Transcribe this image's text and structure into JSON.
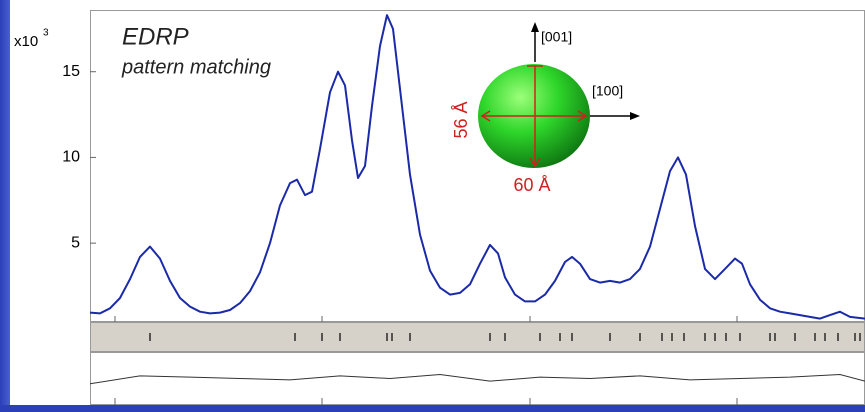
{
  "chart_data": {
    "type": "line",
    "title": "EDRP",
    "subtitle": "pattern matching",
    "y_multiplier": "x10",
    "y_multiplier_exponent": "3",
    "annotations": {
      "axis_001": "[001]",
      "axis_100": "[100]",
      "height": "56 Å",
      "width": "60 Å"
    },
    "xlim": [
      0,
      77.5
    ],
    "xticks": [
      2.5,
      23.2,
      44,
      64.7
    ],
    "ylim": [
      0.4,
      18.6
    ],
    "yticks": [
      5,
      10,
      15
    ],
    "x": [
      0,
      1,
      2,
      3,
      4,
      5,
      6,
      7,
      8,
      9,
      10,
      11,
      12,
      13,
      14,
      15,
      16,
      17,
      18,
      19,
      20,
      20.7,
      21.5,
      22.2,
      23,
      24,
      24.8,
      25.5,
      26.2,
      26.8,
      27.5,
      28.2,
      29,
      29.7,
      30.3,
      31,
      32,
      33,
      34,
      35,
      36,
      37,
      38,
      39,
      40,
      40.8,
      41.5,
      42.5,
      43.5,
      44.5,
      45.5,
      46.5,
      47.5,
      48.2,
      49,
      50,
      51,
      52,
      53,
      54,
      55,
      56,
      57,
      58,
      58.8,
      59.6,
      60.5,
      61.5,
      62.5,
      63.5,
      64.5,
      65.2,
      66,
      67,
      68,
      69,
      70,
      71,
      72,
      73,
      74,
      75,
      76,
      77.5
    ],
    "series": [
      {
        "color": "#1a2aa8",
        "values": [
          0.95,
          0.9,
          1.2,
          1.8,
          2.9,
          4.2,
          4.8,
          4.1,
          2.8,
          1.8,
          1.3,
          1.0,
          0.9,
          0.95,
          1.1,
          1.5,
          2.2,
          3.3,
          5.0,
          7.2,
          8.5,
          8.7,
          7.8,
          8.0,
          10.5,
          13.8,
          15.0,
          14.2,
          11.0,
          8.8,
          9.5,
          13.0,
          16.5,
          18.3,
          17.5,
          14.0,
          9.0,
          5.5,
          3.4,
          2.4,
          2.0,
          2.1,
          2.6,
          3.8,
          4.9,
          4.4,
          3.0,
          2.0,
          1.6,
          1.6,
          2.0,
          2.8,
          3.9,
          4.2,
          3.8,
          2.9,
          2.7,
          2.8,
          2.7,
          2.9,
          3.5,
          4.8,
          7.0,
          9.2,
          10.0,
          9.0,
          6.0,
          3.5,
          2.9,
          3.5,
          4.1,
          3.8,
          2.6,
          1.7,
          1.2,
          1.0,
          0.9,
          0.8,
          0.7,
          0.6,
          0.8,
          1.0,
          0.7,
          0.6
        ]
      }
    ],
    "reflections": [
      6,
      20.5,
      23.2,
      25,
      29.7,
      30.2,
      32,
      40,
      41.5,
      45,
      47,
      48.2,
      52,
      55,
      57.2,
      58.2,
      59.4,
      61.5,
      62.5,
      63.6,
      65,
      68,
      68.5,
      70.5,
      72.5,
      73.5,
      74.8,
      76.5,
      77
    ],
    "difference": {
      "ylim": [
        -1,
        1
      ],
      "x": [
        0,
        5,
        10,
        15,
        20,
        25,
        30,
        35,
        40,
        45,
        50,
        55,
        60,
        65,
        70,
        75,
        77.5
      ],
      "values": [
        -0.2,
        0.1,
        0.05,
        0,
        -0.05,
        0.1,
        0,
        0.15,
        -0.1,
        0.05,
        0,
        0.1,
        -0.05,
        0,
        0.05,
        0.15,
        -0.1
      ]
    }
  }
}
